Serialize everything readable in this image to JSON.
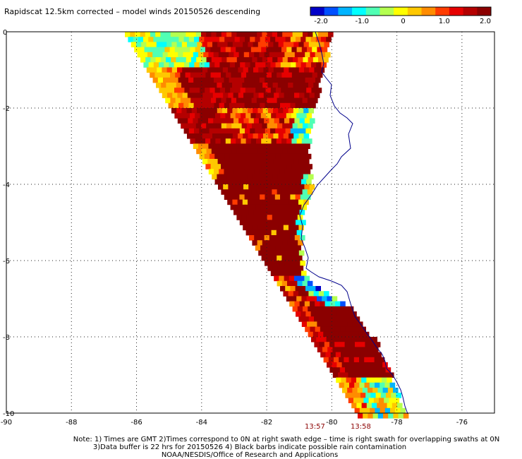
{
  "title": "Rapidscat 12.5km corrected – model winds 20150526 descending",
  "colorbar": {
    "ticks": [
      "-2.0",
      "-1.0",
      "0",
      "1.0",
      "2.0"
    ],
    "colors": [
      "#0000c8",
      "#0050ff",
      "#00b4ff",
      "#00ffff",
      "#50ffb4",
      "#b4ff50",
      "#ffff00",
      "#ffc800",
      "#ff8c00",
      "#ff3c00",
      "#e60000",
      "#b40000",
      "#8b0000"
    ]
  },
  "x_ticks": [
    "-90",
    "-88",
    "-86",
    "-84",
    "-82",
    "-80",
    "-78",
    "-76"
  ],
  "y_ticks": [
    "0",
    "-2",
    "-4",
    "-6",
    "-8",
    "-10"
  ],
  "x_range": [
    -90,
    -75
  ],
  "y_range": [
    -10,
    0
  ],
  "times": [
    "13:57",
    "13:58"
  ],
  "notes": [
    "Note: 1) Times are GMT 2)Times correspond to 0N at right swath edge – time is right swath for overlapping swaths at 0N",
    "3)Data buffer is 22 hrs for 20150526 4) Black barbs indicate possible rain contamination",
    "NOAA/NESDIS/Office of Research and Applications"
  ],
  "coast_color": "#00008b"
}
